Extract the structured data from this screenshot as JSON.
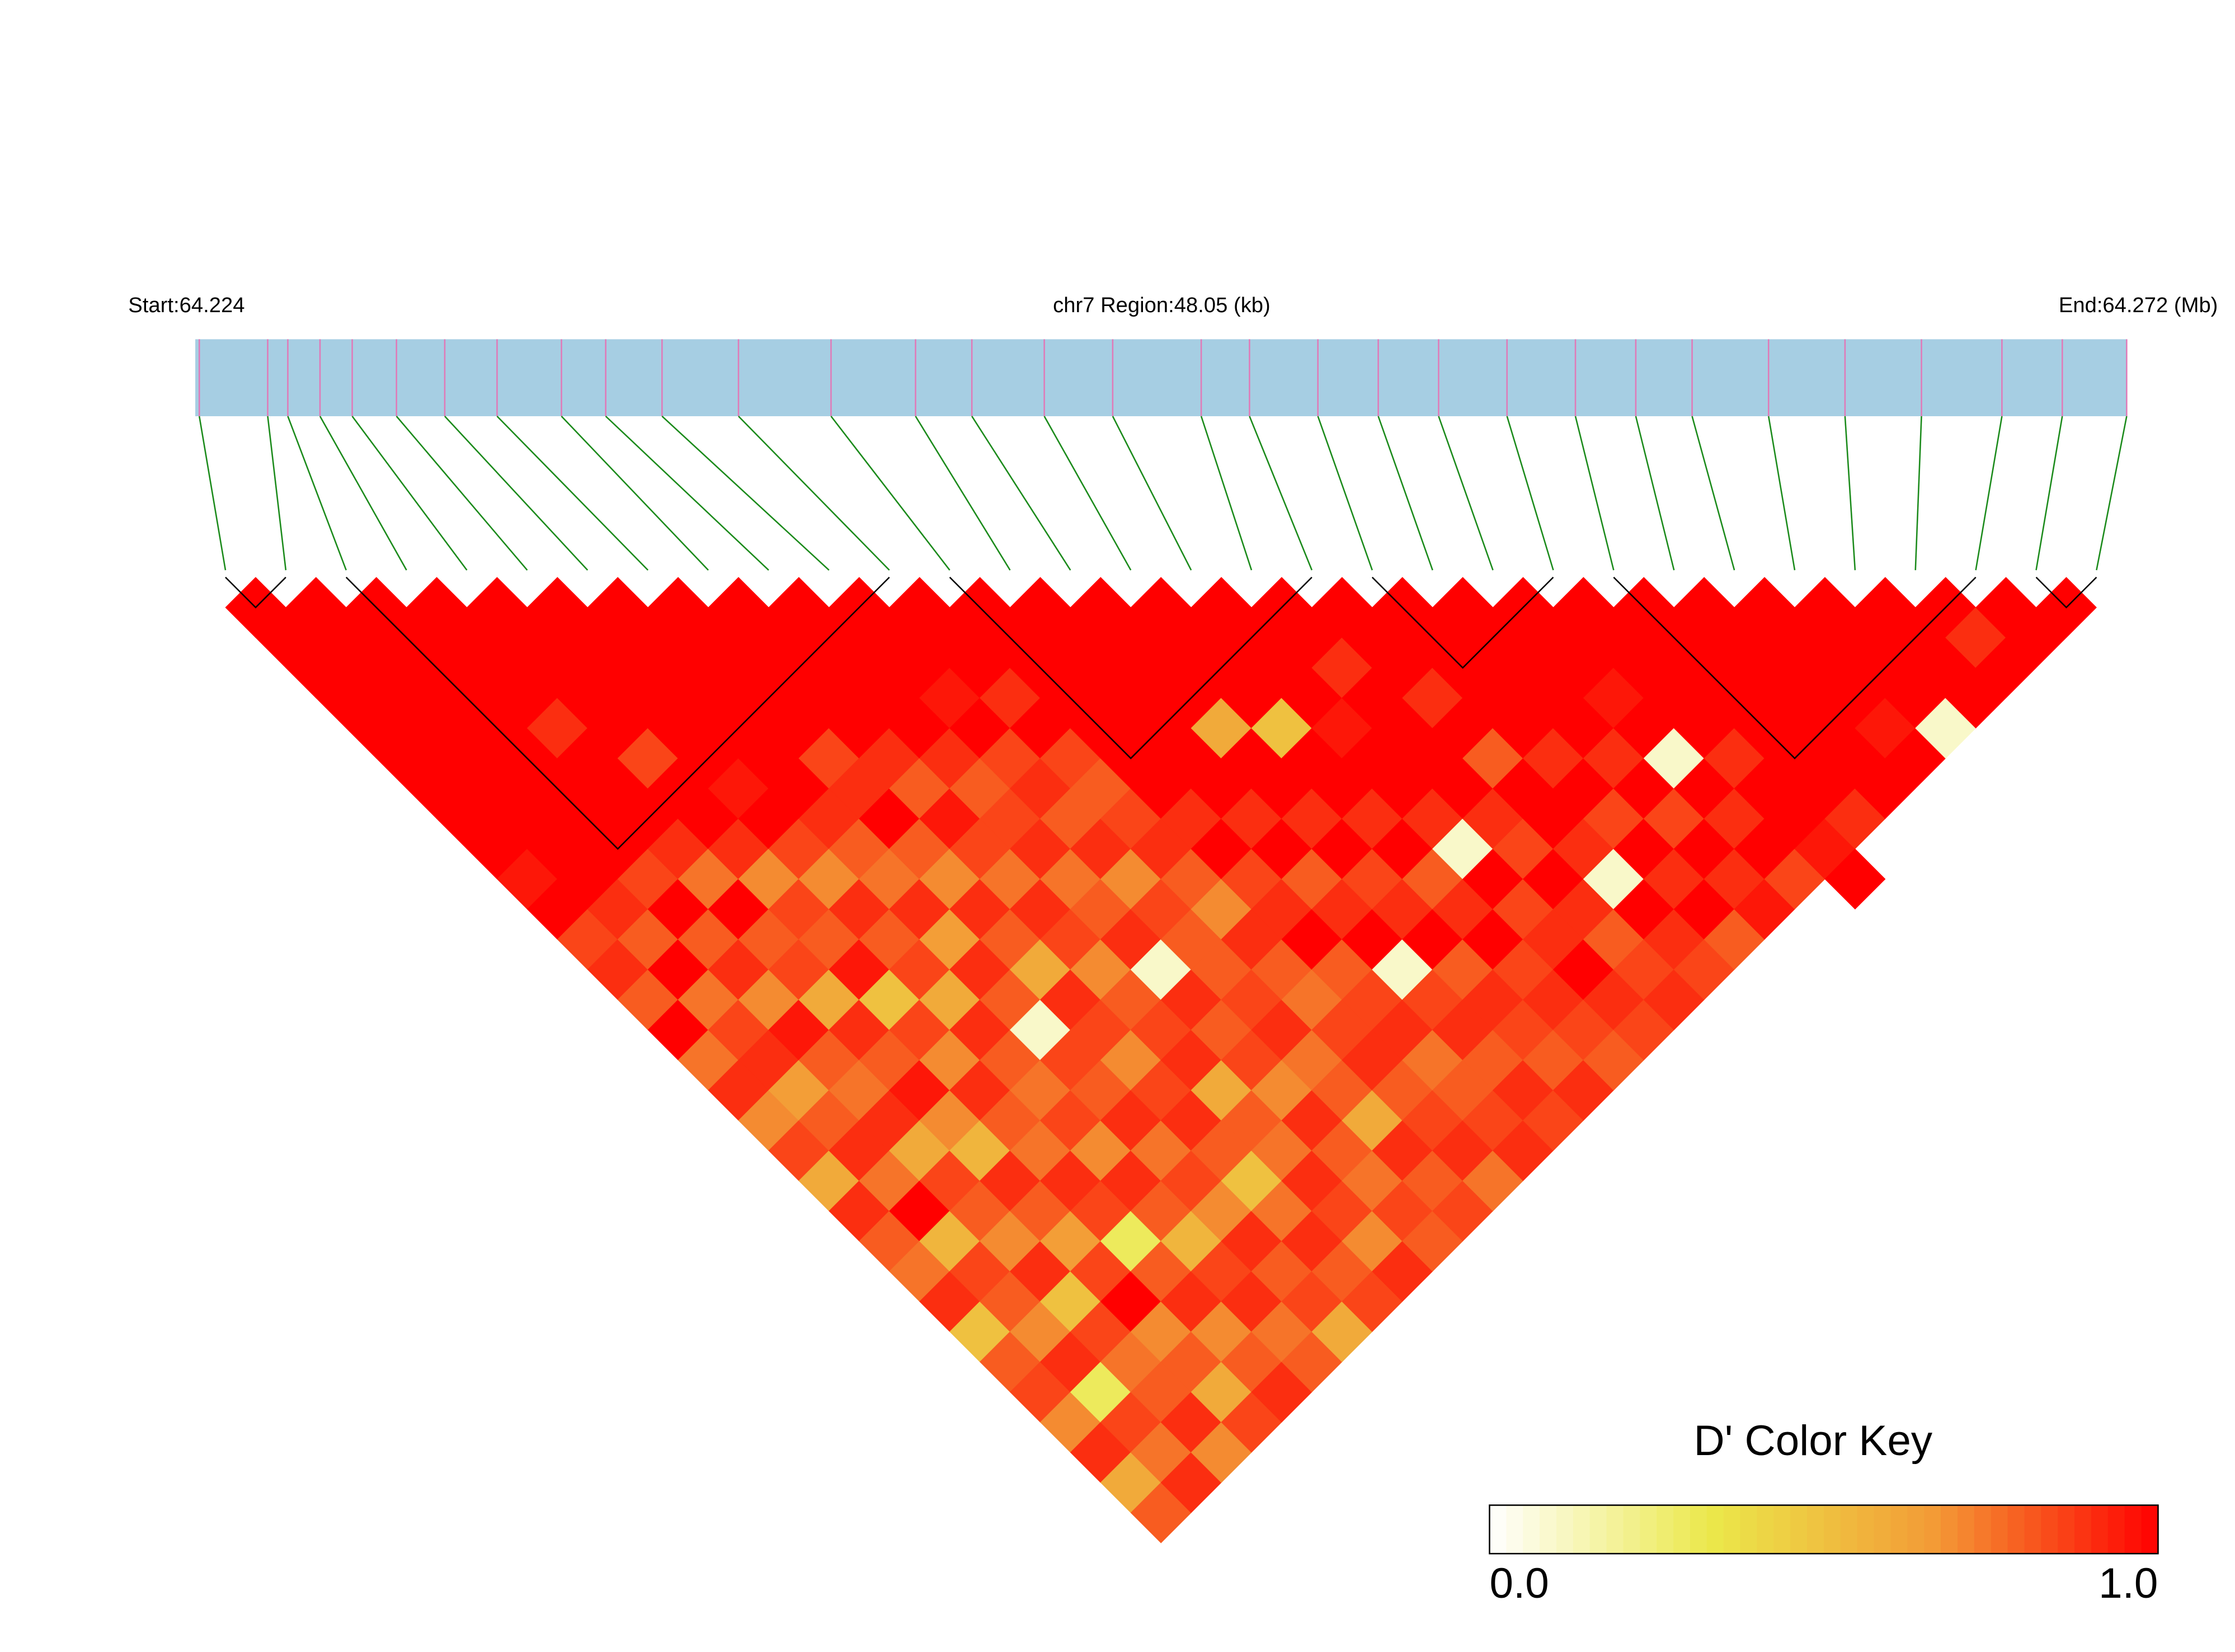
{
  "chart_data": {
    "type": "ld-heatmap",
    "title_left": "Start:64.224",
    "title_center": "chr7 Region:48.05 (kb)",
    "title_right": "End:64.272 (Mb)",
    "key_title": "D' Color Key",
    "xlim": [
      64.224,
      64.272
    ],
    "positions": [
      64.2241,
      64.2258,
      64.2263,
      64.2271,
      64.2279,
      64.229,
      64.2302,
      64.2315,
      64.2331,
      64.2342,
      64.2356,
      64.2375,
      64.2398,
      64.2419,
      64.2433,
      64.2451,
      64.2468,
      64.249,
      64.2502,
      64.2519,
      64.2534,
      64.2549,
      64.2566,
      64.2583,
      64.2598,
      64.2612,
      64.2631,
      64.265,
      64.2669,
      64.2689,
      64.2704,
      64.272
    ],
    "bar_color": "#a6cee3",
    "snp_line_color": "#e07ab8",
    "link_color": "#1a8a1a",
    "colors": [
      "#ffffff",
      "#ebe84a",
      "#f39a36",
      "#ff0000"
    ],
    "key_lim": [
      0,
      1
    ],
    "key_ticks": [
      {
        "value": 0,
        "label": "0.0"
      },
      {
        "value": 1,
        "label": "1.0"
      }
    ],
    "blocks": [
      [
        0,
        1
      ],
      [
        2,
        11
      ],
      [
        12,
        18
      ],
      [
        19,
        22
      ],
      [
        23,
        29
      ],
      [
        30,
        31
      ]
    ],
    "dprime": [
      [
        1,
        1,
        1,
        1,
        1,
        1,
        1,
        1,
        1,
        0.95,
        1,
        0.85,
        0.9,
        0.8,
        1,
        0.75,
        0.9,
        0.7,
        0.85,
        0.6,
        0.9,
        0.8,
        0.75,
        0.9,
        0.5,
        0.8,
        0.85,
        0.7,
        0.9,
        0.6,
        0.8
      ],
      [
        1,
        1,
        1,
        1,
        1,
        1,
        1,
        1,
        1,
        1,
        0.9,
        0.8,
        1,
        0.75,
        0.85,
        0.9,
        0.65,
        0.8,
        0.9,
        0.75,
        1,
        0.55,
        0.85,
        0.8,
        0.7,
        0.9,
        0.3,
        0.85,
        0.75,
        0.9
      ],
      [
        1,
        1,
        1,
        1,
        1,
        1,
        1,
        1,
        1,
        0.85,
        1,
        0.8,
        0.9,
        0.7,
        0.95,
        0.8,
        0.75,
        0.9,
        0.6,
        0.85,
        0.8,
        0.7,
        0.9,
        0.5,
        0.85,
        0.75,
        0.8,
        0.9,
        0.7
      ],
      [
        1,
        1,
        1,
        1,
        0.9,
        1,
        1,
        1,
        0.9,
        0.75,
        1,
        0.8,
        0.85,
        0.6,
        0.9,
        0.8,
        0.95,
        0.7,
        0.55,
        0.9,
        0.8,
        0.65,
        0.85,
        1,
        0.7,
        0.8,
        0.6,
        0.85
      ],
      [
        1,
        1,
        1,
        1,
        1,
        0.85,
        1,
        1,
        0.9,
        0.7,
        0.85,
        0.8,
        0.95,
        0.5,
        0.85,
        0.7,
        0.9,
        0.8,
        0.75,
        0.9,
        0.85,
        0.3,
        0.8,
        0.9,
        0.7,
        0.8,
        0.9
      ],
      [
        1,
        1,
        1,
        1,
        1,
        1,
        0.95,
        1,
        0.85,
        0.7,
        0.9,
        0.8,
        0.85,
        0.6,
        0.9,
        0.8,
        0.75,
        0.85,
        0.7,
        0.9,
        0.8,
        0.55,
        0.85,
        0.9,
        0.75,
        0.8
      ],
      [
        1,
        1,
        1,
        1,
        1,
        1,
        1,
        0.9,
        0.8,
        0.75,
        0.9,
        0.65,
        0.9,
        0.8,
        0.1,
        0.85,
        0.8,
        0.9,
        0.75,
        0.85,
        0.7,
        0.9,
        0.8,
        0.85,
        0.6
      ],
      [
        1,
        1,
        1,
        1,
        1,
        0.85,
        0.9,
        1,
        0.8,
        0.7,
        0.9,
        0.8,
        0.6,
        0.9,
        0.85,
        0.7,
        0.85,
        0.9,
        0.8,
        0.5,
        0.75,
        0.9,
        0.8,
        0.85
      ],
      [
        1,
        1,
        1,
        1,
        1,
        0.9,
        0.8,
        0.95,
        0.85,
        0.75,
        0.9,
        0.85,
        0.7,
        0.8,
        0.85,
        0.9,
        0.6,
        0.8,
        0.75,
        0.9,
        0.85,
        0.7,
        0.9
      ],
      [
        1,
        1,
        1,
        1,
        1,
        0.9,
        0.8,
        0.85,
        0.9,
        0.75,
        0.8,
        0.9,
        0.1,
        0.9,
        0.8,
        0.85,
        0.7,
        0.9,
        0.8,
        0.75,
        0.85,
        0.8
      ],
      [
        1,
        1,
        1,
        0.95,
        1,
        0.85,
        0.9,
        0.8,
        0.9,
        0.7,
        0.85,
        0.8,
        0.8,
        0.85,
        0.9,
        0.75,
        0.8,
        0.6,
        0.9,
        0.8,
        0.85
      ],
      [
        1,
        1,
        1,
        0.9,
        1,
        0.85,
        0.8,
        0.85,
        0.9,
        0.8,
        0.7,
        0.9,
        0.8,
        0.75,
        0.85,
        0.9,
        0.8,
        0.85,
        0.9,
        0.75
      ],
      [
        1,
        1,
        1,
        1,
        1,
        1,
        1,
        0.9,
        1,
        0.85,
        0.9,
        1,
        0.8,
        0.85,
        0.9,
        0.75,
        0.8,
        0.85,
        0.9
      ],
      [
        1,
        1,
        1,
        1,
        1,
        1,
        1,
        0.9,
        1,
        0.8,
        0.9,
        1,
        0.1,
        0.85,
        0.9,
        0.8,
        0.9,
        0.85
      ],
      [
        1,
        1,
        1,
        1,
        0.6,
        1,
        1,
        0.9,
        1,
        0.85,
        0.9,
        1,
        0.8,
        0.9,
        0.85,
        0.8,
        0.9
      ],
      [
        1,
        1,
        1,
        1,
        0.5,
        1,
        1,
        0.9,
        1,
        0.8,
        0.9,
        1,
        0.85,
        0.9,
        0.85,
        0.8
      ],
      [
        1,
        1,
        1,
        1,
        0.95,
        1,
        1,
        0.9,
        0.1,
        1,
        0.85,
        0.9,
        1,
        0.9,
        0.85
      ],
      [
        1,
        1,
        0.9,
        1,
        1,
        1,
        1,
        0.9,
        0.85,
        1,
        0.9,
        0.8,
        0.85,
        0.9
      ],
      [
        1,
        1,
        1,
        0.9,
        1,
        0.8,
        1,
        1,
        0.9,
        0.1,
        1,
        0.9,
        0.85
      ],
      [
        1,
        1,
        1,
        1,
        1,
        0.9,
        1,
        0.85,
        1,
        0.9,
        1,
        0.8
      ],
      [
        1,
        1,
        1,
        1,
        1,
        0.9,
        1,
        0.85,
        1,
        0.9,
        0.95
      ],
      [
        1,
        1,
        1,
        0.95,
        1,
        0.1,
        1,
        0.9,
        1,
        0.85
      ],
      [
        1,
        1,
        1,
        1,
        1,
        0.9,
        1,
        1,
        0.95,
        1
      ],
      [
        1,
        1,
        1,
        1,
        1,
        1,
        1,
        0.9
      ],
      [
        1,
        1,
        1,
        1,
        1,
        1,
        1
      ],
      [
        1,
        1,
        1,
        1,
        0.95,
        1
      ],
      [
        1,
        1,
        1,
        1,
        0.1
      ],
      [
        1,
        1,
        1,
        1
      ],
      [
        1,
        0.9,
        1
      ],
      [
        1,
        1
      ],
      [
        1
      ]
    ]
  }
}
